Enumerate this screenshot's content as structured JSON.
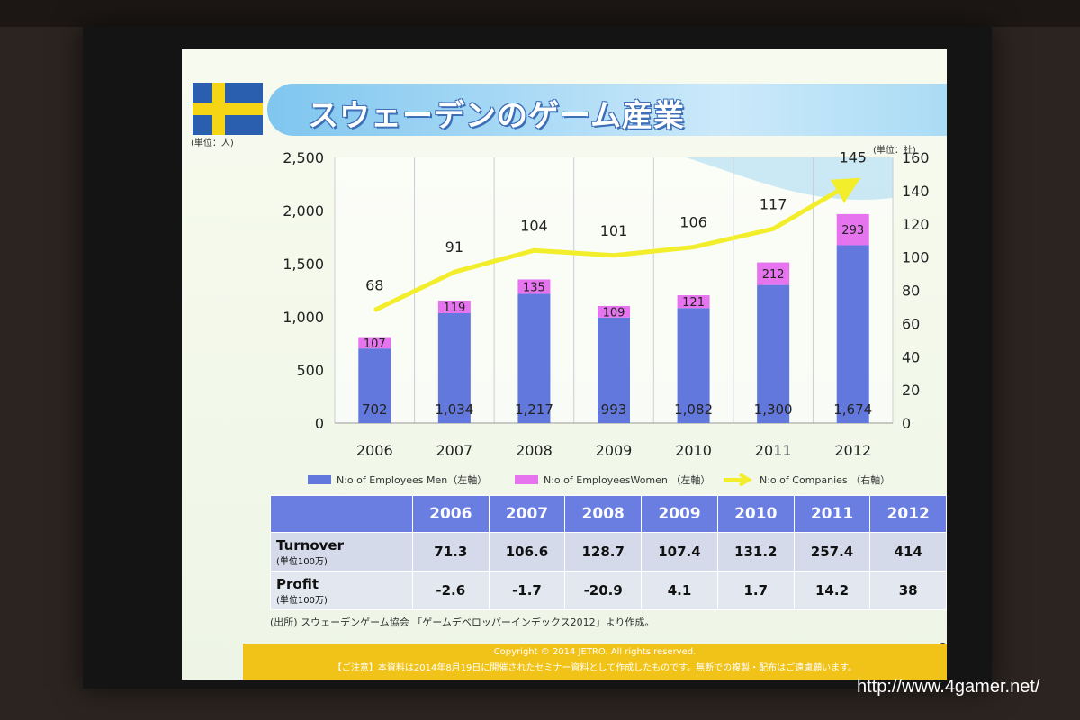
{
  "slide": {
    "title": "スウェーデンのゲーム産業",
    "unit_left": "(単位：人)",
    "unit_right": "(単位：社)",
    "source": "(出所) スウェーデンゲーム協会 「ゲームデベロッパーインデックス2012」より作成。",
    "page_number": "25",
    "copyright": "Copyright © 2014 JETRO. All rights reserved.",
    "notice": "【ご注意】本資料は2014年8月19日に開催されたセミナー資料として作成したものです。無断での複製・配布はご遠慮願います。"
  },
  "colors": {
    "men": "#6378dd",
    "women": "#e574ee",
    "companies": "#f2ee2c",
    "table_header": "#6a7ee2",
    "footer": "#f1c318"
  },
  "chart_data": {
    "type": "bar",
    "stacked": true,
    "categories": [
      "2006",
      "2007",
      "2008",
      "2009",
      "2010",
      "2011",
      "2012"
    ],
    "series": [
      {
        "name": "N:o of Employees Men（左軸）",
        "axis": "left",
        "values": [
          702,
          1034,
          1217,
          993,
          1082,
          1300,
          1674
        ],
        "labels": [
          "702",
          "1,034",
          "1,217",
          "993",
          "1,082",
          "1,300",
          "1,674"
        ]
      },
      {
        "name": "N:o of EmployeesWomen （左軸）",
        "axis": "left",
        "values": [
          107,
          119,
          135,
          109,
          121,
          212,
          293
        ],
        "labels": [
          "107",
          "119",
          "135",
          "109",
          "121",
          "212",
          "293"
        ]
      },
      {
        "name": "N:o of Companies （右軸）",
        "axis": "right",
        "type": "line",
        "values": [
          68,
          91,
          104,
          101,
          106,
          117,
          145
        ],
        "labels": [
          "68",
          "91",
          "104",
          "101",
          "106",
          "117",
          "145"
        ]
      }
    ],
    "y_left": {
      "range": [
        0,
        2500
      ],
      "ticks": [
        "0",
        "500",
        "1,000",
        "1,500",
        "2,000",
        "2,500"
      ]
    },
    "y_right": {
      "range": [
        0,
        160
      ],
      "ticks": [
        "0",
        "20",
        "40",
        "60",
        "80",
        "100",
        "120",
        "140",
        "160"
      ]
    },
    "grid": "vertical",
    "legend_position": "bottom"
  },
  "table": {
    "years": [
      "2006",
      "2007",
      "2008",
      "2009",
      "2010",
      "2011",
      "2012"
    ],
    "rows": [
      {
        "label": "Turnover",
        "sublabel": "(単位100万)",
        "values": [
          "71.3",
          "106.6",
          "128.7",
          "107.4",
          "131.2",
          "257.4",
          "414"
        ]
      },
      {
        "label": "Profit",
        "sublabel": "(単位100万)",
        "values": [
          "-2.6",
          "-1.7",
          "-20.9",
          "4.1",
          "1.7",
          "14.2",
          "38"
        ]
      }
    ]
  },
  "watermark": "http://www.4gamer.net/"
}
